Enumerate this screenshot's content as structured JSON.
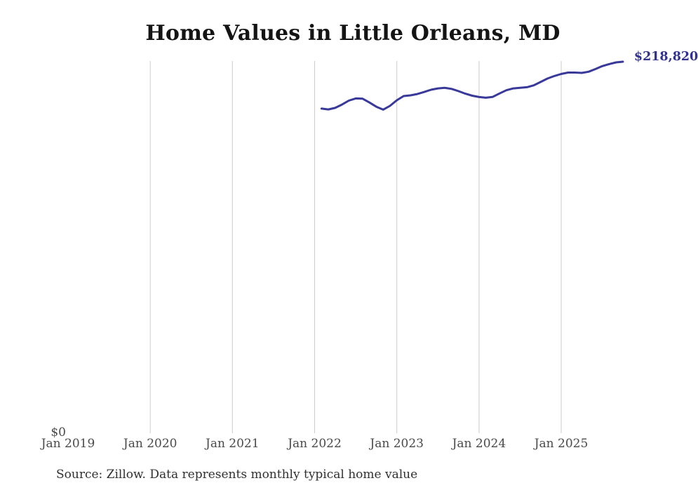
{
  "title": "Home Values in Little Orleans, MD",
  "source_note": "Source: Zillow. Data represents monthly typical home value",
  "latest_value_label": "$218,820",
  "y_axis": {
    "zero_label": "$0"
  },
  "colors": {
    "line": "#39399a",
    "latest_label": "#32328e",
    "grid": "#cccccc",
    "tick_label": "#4a4a4a",
    "title": "#141414",
    "source": "#303030"
  },
  "chart_data": {
    "type": "line",
    "series_name": "Monthly typical home value (ZHVI)",
    "title": "Home Values in Little Orleans, MD",
    "xlabel": "",
    "ylabel": "",
    "ylim_bottom_label": "$0",
    "grid": "vertical-only",
    "legend": "none",
    "end_annotation": "$218,820",
    "x_ticks": [
      {
        "label": "Jan 2019",
        "month": "2019-01",
        "gridline": false
      },
      {
        "label": "Jan 2020",
        "month": "2020-01",
        "gridline": true
      },
      {
        "label": "Jan 2021",
        "month": "2021-01",
        "gridline": true
      },
      {
        "label": "Jan 2022",
        "month": "2022-01",
        "gridline": true
      },
      {
        "label": "Jan 2023",
        "month": "2023-01",
        "gridline": true
      },
      {
        "label": "Jan 2024",
        "month": "2024-01",
        "gridline": true
      },
      {
        "label": "Jan 2025",
        "month": "2025-01",
        "gridline": true
      }
    ],
    "x": [
      "2022-02",
      "2022-03",
      "2022-04",
      "2022-05",
      "2022-06",
      "2022-07",
      "2022-08",
      "2022-09",
      "2022-10",
      "2022-11",
      "2022-12",
      "2023-01",
      "2023-02",
      "2023-03",
      "2023-04",
      "2023-05",
      "2023-06",
      "2023-07",
      "2023-08",
      "2023-09",
      "2023-10",
      "2023-11",
      "2023-12",
      "2024-01",
      "2024-02",
      "2024-03",
      "2024-04",
      "2024-05",
      "2024-06",
      "2024-07",
      "2024-08",
      "2024-09",
      "2024-10",
      "2024-11",
      "2024-12",
      "2025-01",
      "2025-02",
      "2025-03",
      "2025-04",
      "2025-05",
      "2025-06",
      "2025-07",
      "2025-08",
      "2025-09",
      "2025-10"
    ],
    "values": [
      191200,
      190700,
      191600,
      193600,
      195900,
      197200,
      197000,
      194800,
      192300,
      190600,
      192800,
      196100,
      198600,
      199000,
      199800,
      201000,
      202300,
      203100,
      203400,
      202800,
      201500,
      200000,
      198800,
      198000,
      197600,
      198100,
      200100,
      202000,
      203100,
      203400,
      203800,
      204900,
      206900,
      208900,
      210400,
      211600,
      212400,
      212400,
      212200,
      212900,
      214500,
      216200,
      217400,
      218400,
      218820
    ]
  }
}
